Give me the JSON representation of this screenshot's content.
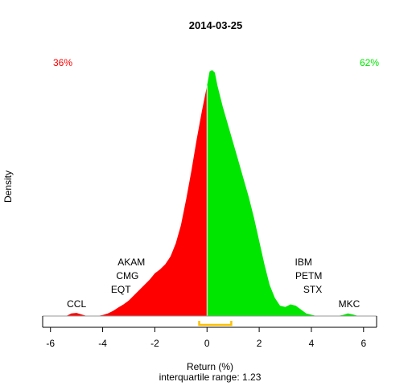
{
  "chart_data": {
    "type": "area",
    "title": "2014-03-25",
    "xlabel": "Return (%)",
    "ylabel": "Density",
    "subtitle": "interquartile range: 1.23",
    "xlim": [
      -6.3,
      6.5
    ],
    "ylim": [
      0,
      1.0
    ],
    "x_ticks": [
      -6,
      -4,
      -2,
      0,
      2,
      4,
      6
    ],
    "colors": {
      "negative": "#ff0000",
      "positive": "#00e600",
      "iqr": "#ffc000",
      "axis": "#000000"
    },
    "percent_negative": "36%",
    "percent_positive": "62%",
    "density": {
      "x": [
        -5.4,
        -5.2,
        -5.0,
        -4.8,
        -4.6,
        -4.4,
        -4.2,
        -4.0,
        -3.8,
        -3.6,
        -3.4,
        -3.2,
        -3.0,
        -2.8,
        -2.6,
        -2.4,
        -2.2,
        -2.0,
        -1.8,
        -1.6,
        -1.4,
        -1.2,
        -1.0,
        -0.8,
        -0.6,
        -0.4,
        -0.2,
        0.0,
        0.1,
        0.2,
        0.3,
        0.4,
        0.6,
        0.8,
        1.0,
        1.2,
        1.4,
        1.6,
        1.8,
        2.0,
        2.2,
        2.4,
        2.6,
        2.8,
        3.0,
        3.2,
        3.4,
        3.6,
        3.8,
        4.0,
        4.2,
        4.4,
        4.6,
        4.8,
        5.0,
        5.2,
        5.4,
        5.6,
        5.8,
        6.0
      ],
      "y": [
        0.0,
        0.01,
        0.012,
        0.006,
        0.0,
        0.0,
        0.0,
        0.004,
        0.01,
        0.02,
        0.033,
        0.045,
        0.06,
        0.08,
        0.1,
        0.12,
        0.14,
        0.165,
        0.18,
        0.2,
        0.23,
        0.28,
        0.35,
        0.45,
        0.56,
        0.68,
        0.79,
        0.89,
        0.945,
        0.95,
        0.94,
        0.89,
        0.81,
        0.74,
        0.67,
        0.6,
        0.53,
        0.46,
        0.38,
        0.29,
        0.2,
        0.12,
        0.07,
        0.04,
        0.035,
        0.045,
        0.04,
        0.025,
        0.01,
        0.005,
        0.0,
        0.0,
        0.0,
        0.0,
        0.0,
        0.004,
        0.01,
        0.006,
        0.0,
        0.0
      ]
    },
    "iqr": [
      -0.3,
      0.93
    ],
    "annotations": [
      {
        "text": "CCL",
        "x": -5.0,
        "level": 0
      },
      {
        "text": "EQT",
        "x": -3.3,
        "level": 1
      },
      {
        "text": "CMG",
        "x": -3.05,
        "level": 2
      },
      {
        "text": "AKAM",
        "x": -2.9,
        "level": 3
      },
      {
        "text": "IBM",
        "x": 3.7,
        "level": 3
      },
      {
        "text": "PETM",
        "x": 3.9,
        "level": 2
      },
      {
        "text": "STX",
        "x": 4.05,
        "level": 1
      },
      {
        "text": "MKC",
        "x": 5.45,
        "level": 0
      }
    ]
  }
}
